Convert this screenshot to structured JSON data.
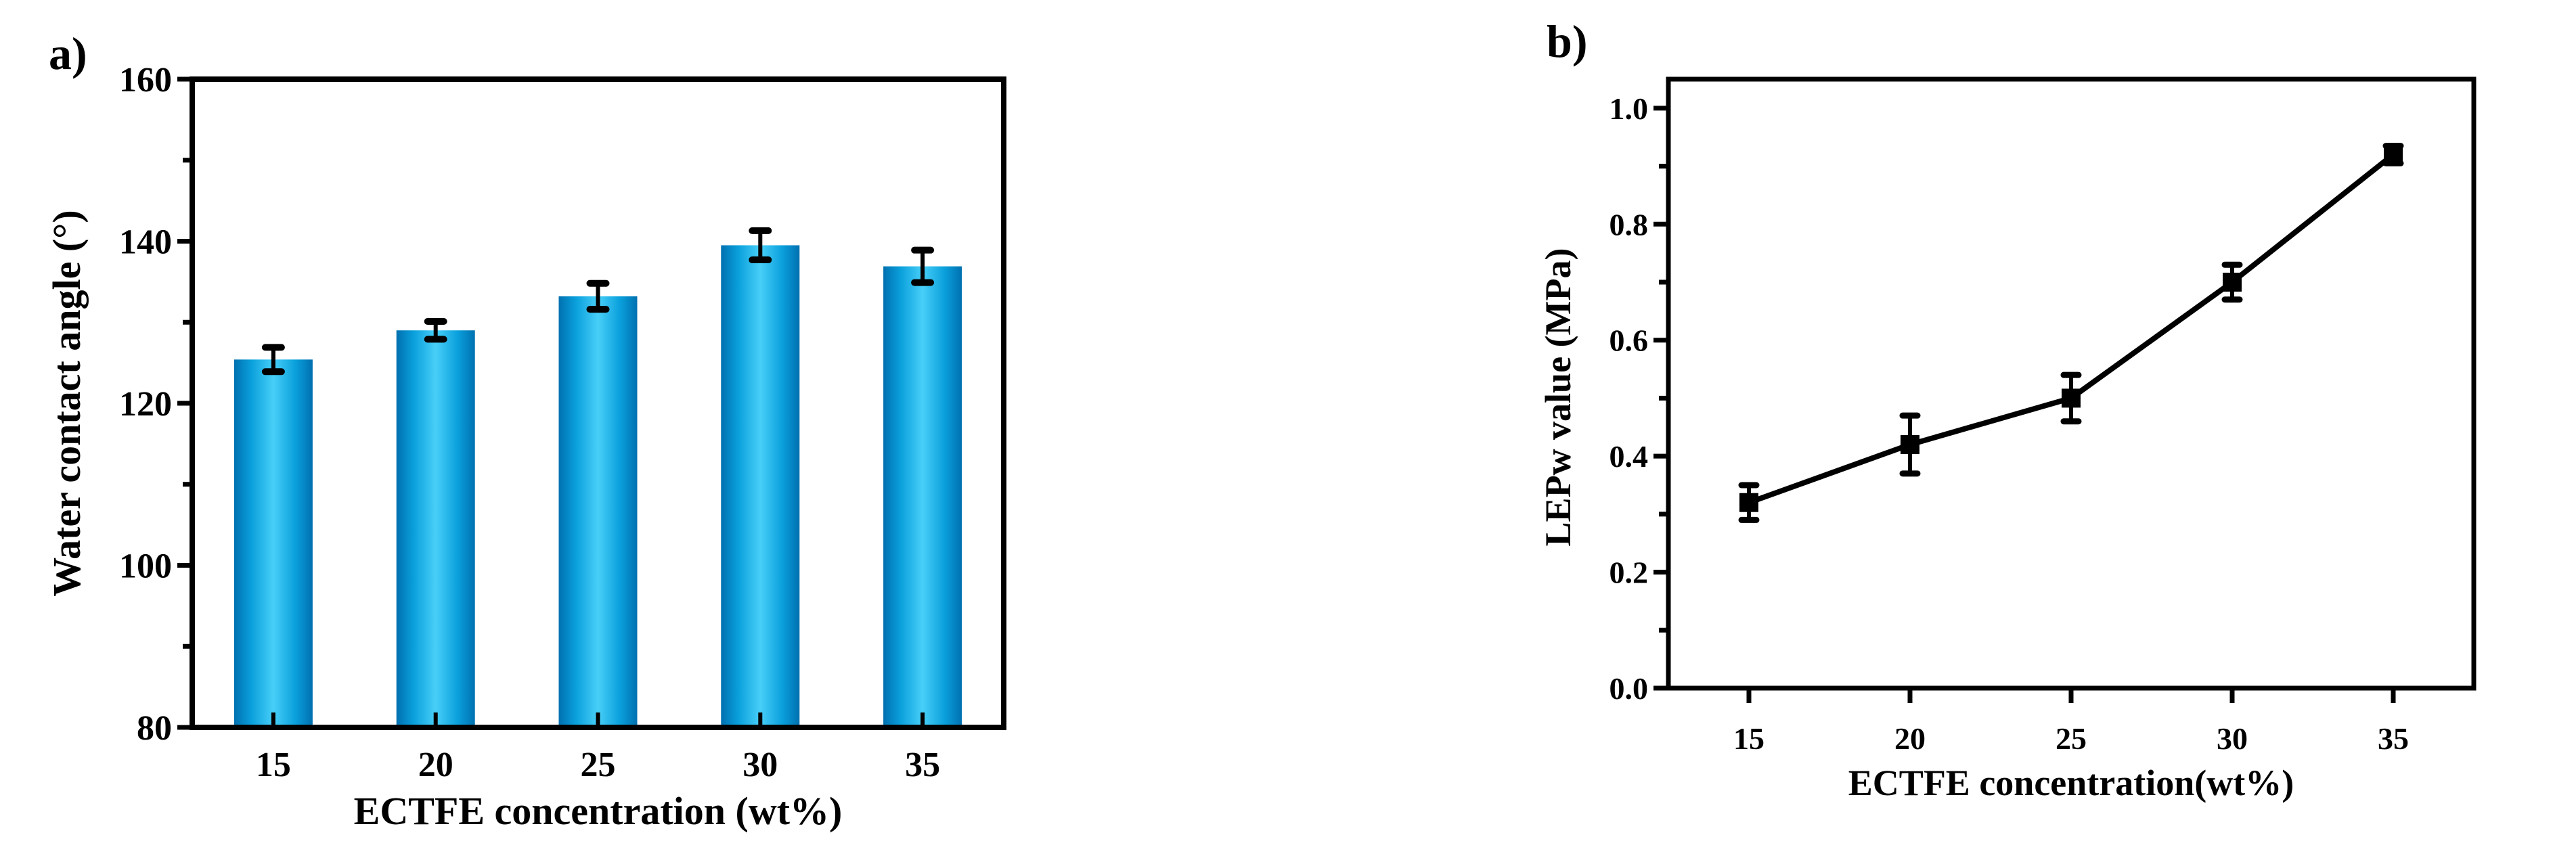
{
  "panels": {
    "a": {
      "label": "a)"
    },
    "b": {
      "label": "b)"
    }
  },
  "chart_data": [
    {
      "panel": "a)",
      "type": "bar",
      "title": "",
      "xlabel": "ECTFE concentration (wt%)",
      "ylabel": "Water contact angle (°)",
      "categories": [
        "15",
        "20",
        "25",
        "30",
        "35"
      ],
      "values": [
        125.4,
        129.0,
        133.2,
        139.5,
        136.9
      ],
      "errors": [
        1.5,
        1.1,
        1.6,
        1.8,
        2.0
      ],
      "ylim": [
        80,
        160
      ],
      "yticks": [
        80,
        100,
        120,
        140,
        160
      ],
      "yminor_step": 10,
      "grid": false,
      "legend": null,
      "bar_colors": {
        "edge": "#0070b0",
        "center": "#48cff8"
      }
    },
    {
      "panel": "b)",
      "type": "line",
      "title": "",
      "xlabel": "ECTFE concentration(wt%)",
      "ylabel": "LEPw value (MPa)",
      "x": [
        15,
        20,
        25,
        30,
        35
      ],
      "values": [
        0.32,
        0.42,
        0.5,
        0.7,
        0.92
      ],
      "errors": [
        0.03,
        0.05,
        0.04,
        0.03,
        0.015
      ],
      "xlim": [
        12.5,
        37.5
      ],
      "xticks": [
        15,
        20,
        25,
        30,
        35
      ],
      "ylim": [
        0,
        1.05
      ],
      "yticks": [
        "0.0",
        "0.2",
        "0.4",
        "0.6",
        "0.8",
        "1.0"
      ],
      "yminor_step": 0.1,
      "marker": "square",
      "line_color": "#000000",
      "grid": false,
      "legend": null
    }
  ]
}
